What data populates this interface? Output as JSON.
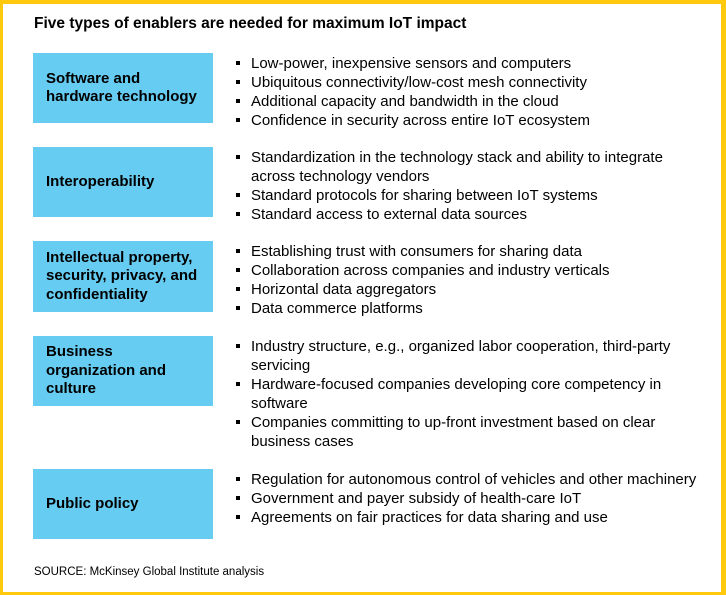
{
  "title": "Five types of enablers are needed for maximum IoT impact",
  "colors": {
    "border": "#FFC90E",
    "box": "#66CCF2"
  },
  "enablers": [
    {
      "label": "Software and hardware technology",
      "items": [
        "Low-power, inexpensive sensors and computers",
        "Ubiquitous connectivity/low-cost mesh connectivity",
        "Additional capacity and bandwidth in the cloud",
        "Confidence in security across entire IoT ecosystem"
      ]
    },
    {
      "label": "Interoperability",
      "items": [
        "Standardization in the technology stack and ability to integrate across technology vendors",
        "Standard protocols for sharing between IoT systems",
        "Standard access to external data sources"
      ]
    },
    {
      "label": "Intellectual property, security, privacy, and confidentiality",
      "items": [
        "Establishing trust with consumers for sharing data",
        "Collaboration across companies and industry verticals",
        "Horizontal data aggregators",
        "Data commerce platforms"
      ]
    },
    {
      "label": "Business organization and culture",
      "items": [
        "Industry structure, e.g., organized labor cooperation, third-party servicing",
        "Hardware-focused companies developing core competency in software",
        "Companies committing to up-front investment based on clear business cases"
      ]
    },
    {
      "label": "Public policy",
      "items": [
        "Regulation for autonomous control of vehicles and other machinery",
        "Government and payer subsidy of health-care IoT",
        "Agreements on fair practices for data sharing and use"
      ]
    }
  ],
  "source": "SOURCE:  McKinsey Global Institute analysis"
}
